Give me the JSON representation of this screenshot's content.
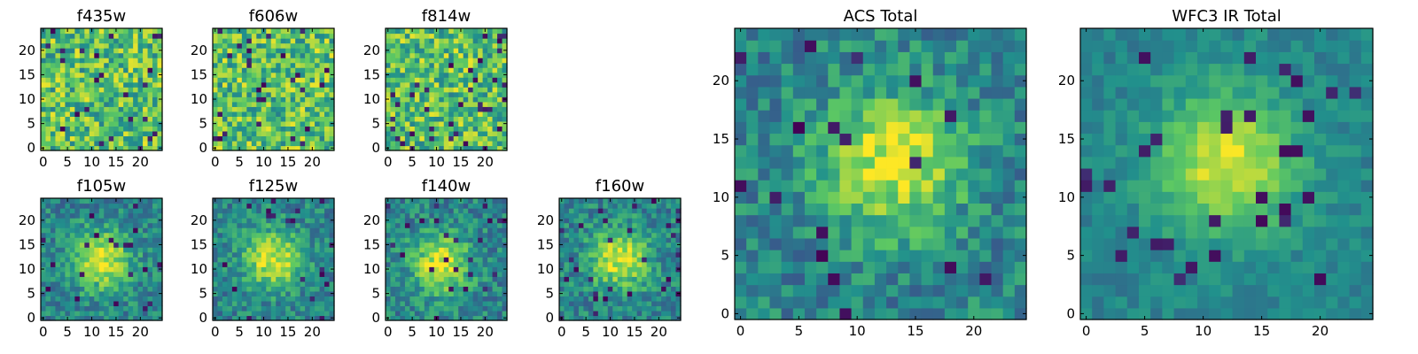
{
  "figure": {
    "colormap": "viridis",
    "colormap_stops": [
      "#440154",
      "#3b528b",
      "#21918c",
      "#5ec962",
      "#fde725"
    ]
  },
  "chart_data": [
    {
      "type": "heatmap",
      "title": "f435w",
      "grid": [
        25,
        25
      ],
      "xlim": [
        0,
        24
      ],
      "ylim": [
        0,
        24
      ],
      "xticks": [
        0,
        5,
        10,
        15,
        20
      ],
      "yticks": [
        0,
        5,
        10,
        15,
        20
      ],
      "source_peak": null,
      "noise": "high"
    },
    {
      "type": "heatmap",
      "title": "f606w",
      "grid": [
        25,
        25
      ],
      "xlim": [
        0,
        24
      ],
      "ylim": [
        0,
        24
      ],
      "xticks": [
        0,
        5,
        10,
        15,
        20
      ],
      "yticks": [
        0,
        5,
        10,
        15,
        20
      ],
      "source_peak": null,
      "noise": "high"
    },
    {
      "type": "heatmap",
      "title": "f814w",
      "grid": [
        25,
        25
      ],
      "xlim": [
        0,
        24
      ],
      "ylim": [
        0,
        24
      ],
      "xticks": [
        0,
        5,
        10,
        15,
        20
      ],
      "yticks": [
        0,
        5,
        10,
        15,
        20
      ],
      "source_peak": null,
      "noise": "high"
    },
    {
      "type": "heatmap",
      "title": "f105w",
      "grid": [
        25,
        25
      ],
      "xlim": [
        0,
        24
      ],
      "ylim": [
        0,
        24
      ],
      "xticks": [
        0,
        5,
        10,
        15,
        20
      ],
      "yticks": [
        0,
        5,
        10,
        15,
        20
      ],
      "source_peak": [
        12,
        12
      ],
      "noise": "medium"
    },
    {
      "type": "heatmap",
      "title": "f125w",
      "grid": [
        25,
        25
      ],
      "xlim": [
        0,
        24
      ],
      "ylim": [
        0,
        24
      ],
      "xticks": [
        0,
        5,
        10,
        15,
        20
      ],
      "yticks": [
        0,
        5,
        10,
        15,
        20
      ],
      "source_peak": [
        12,
        12
      ],
      "noise": "medium"
    },
    {
      "type": "heatmap",
      "title": "f140w",
      "grid": [
        25,
        25
      ],
      "xlim": [
        0,
        24
      ],
      "ylim": [
        0,
        24
      ],
      "xticks": [
        0,
        5,
        10,
        15,
        20
      ],
      "yticks": [
        0,
        5,
        10,
        15,
        20
      ],
      "source_peak": [
        11,
        11
      ],
      "noise": "medium"
    },
    {
      "type": "heatmap",
      "title": "f160w",
      "grid": [
        25,
        25
      ],
      "xlim": [
        0,
        24
      ],
      "ylim": [
        0,
        24
      ],
      "xticks": [
        0,
        5,
        10,
        15,
        20
      ],
      "yticks": [
        0,
        5,
        10,
        15,
        20
      ],
      "source_peak": [
        12,
        12
      ],
      "noise": "medium"
    },
    {
      "type": "heatmap",
      "title": "ACS Total",
      "grid": [
        25,
        25
      ],
      "xlim": [
        0,
        24
      ],
      "ylim": [
        0,
        24
      ],
      "xticks": [
        0,
        5,
        10,
        15,
        20
      ],
      "yticks": [
        0,
        5,
        10,
        15,
        20
      ],
      "source_peak": [
        13,
        13
      ],
      "noise": "medium"
    },
    {
      "type": "heatmap",
      "title": "WFC3 IR Total",
      "grid": [
        25,
        25
      ],
      "xlim": [
        0,
        24
      ],
      "ylim": [
        0,
        24
      ],
      "xticks": [
        0,
        5,
        10,
        15,
        20
      ],
      "yticks": [
        0,
        5,
        10,
        15,
        20
      ],
      "source_peak": [
        12,
        13
      ],
      "noise": "low"
    }
  ]
}
